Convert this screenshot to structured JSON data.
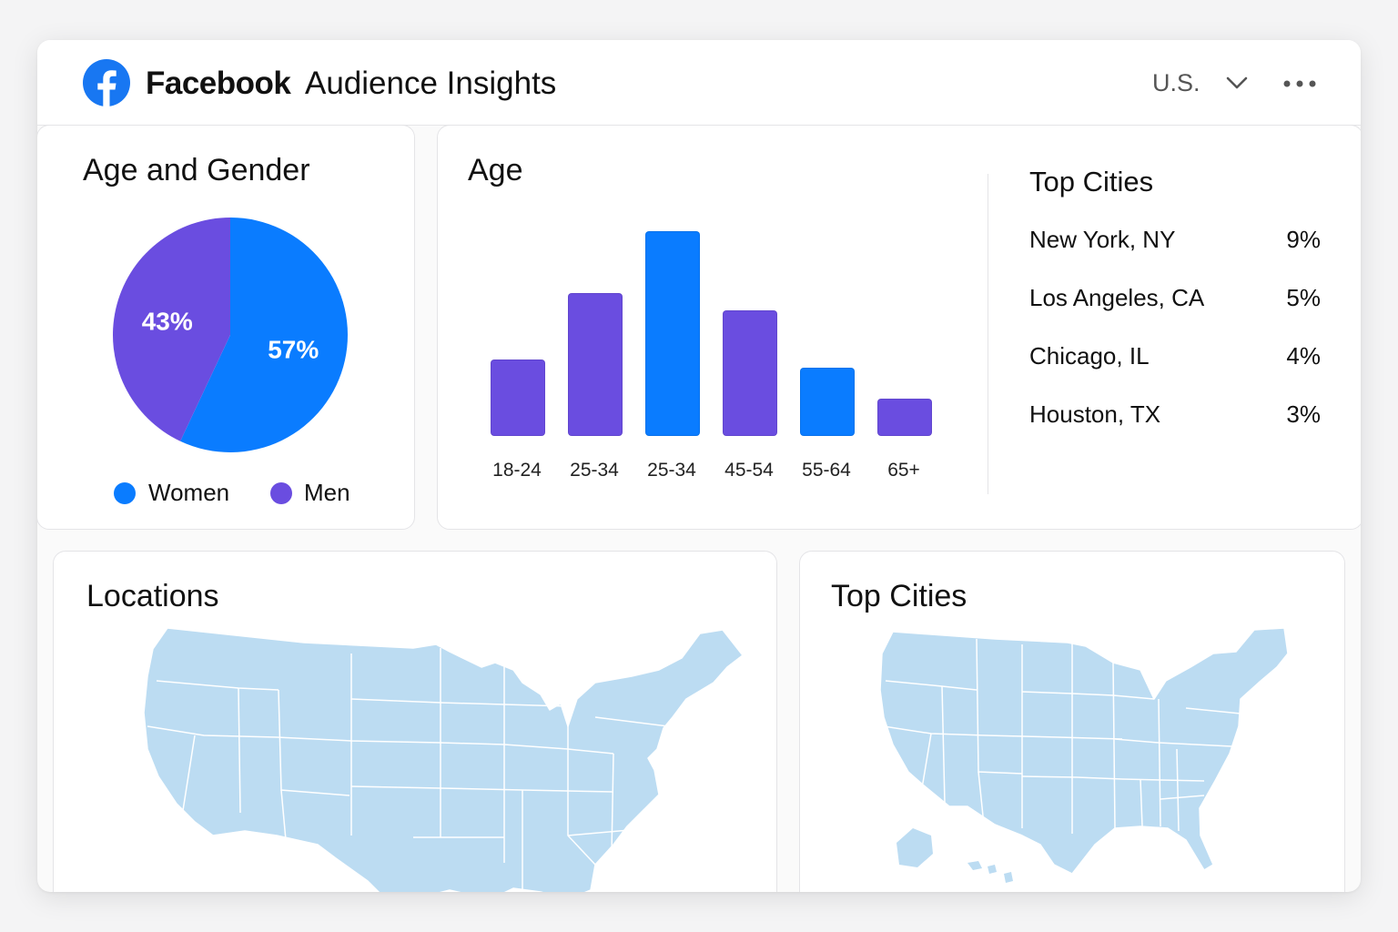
{
  "header": {
    "brand": "Facebook",
    "title": "Audience Insights",
    "country_select": "U.S.",
    "brand_color": "#1877f2"
  },
  "age_gender": {
    "title": "Age and Gender",
    "women_pct_label": "57%",
    "men_pct_label": "43%",
    "legend": [
      {
        "label": "Women",
        "color": "#0a7cff"
      },
      {
        "label": "Men",
        "color": "#6a4de0"
      }
    ]
  },
  "age": {
    "title": "Age"
  },
  "top_cities_panel": {
    "title": "Top Cities",
    "cities": [
      {
        "name": "New York, NY",
        "pct": "9%"
      },
      {
        "name": "Los Angeles, CA",
        "pct": "5%"
      },
      {
        "name": "Chicago, IL",
        "pct": "4%"
      },
      {
        "name": "Houston, TX",
        "pct": "3%"
      }
    ]
  },
  "locations": {
    "title": "Locations",
    "map_color": "#bcdcf2"
  },
  "top_cities_map": {
    "title": "Top Cities"
  },
  "chart_data": [
    {
      "type": "pie",
      "title": "Age and Gender",
      "categories": [
        "Women",
        "Men"
      ],
      "values": [
        57,
        43
      ],
      "colors": [
        "#0a7cff",
        "#6a4de0"
      ],
      "legend": "bottom"
    },
    {
      "type": "bar",
      "title": "Age",
      "categories": [
        "18-24",
        "25-34",
        "25-34",
        "45-54",
        "55-64",
        "65+"
      ],
      "values": [
        17,
        32,
        46,
        28,
        15,
        8
      ],
      "colors": [
        "#6a4de0",
        "#6a4de0",
        "#0a7cff",
        "#6a4de0",
        "#0a7cff",
        "#6a4de0"
      ],
      "ylim": [
        0,
        50
      ],
      "grid": false
    }
  ]
}
